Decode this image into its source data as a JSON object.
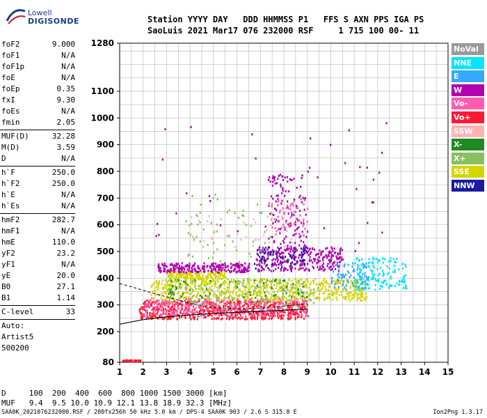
{
  "logo": {
    "line1": "Lowell",
    "line2": "DIGISONDE"
  },
  "header": {
    "line1": "Station YYYY DAY   DDD HHMMSS P1   FFS S AXN PPS IGA PS",
    "line2": "SaoLuis 2021 Mar17 076 232000 RSF     1 715 100 00- 11"
  },
  "params": [
    {
      "label": "foF2",
      "value": "9.000"
    },
    {
      "label": "foF1",
      "value": "N/A"
    },
    {
      "label": "foF1p",
      "value": "N/A"
    },
    {
      "label": "foE",
      "value": "N/A"
    },
    {
      "label": "foEp",
      "value": "0.35"
    },
    {
      "label": "fxI",
      "value": "9.30"
    },
    {
      "label": "foEs",
      "value": "N/A"
    },
    {
      "label": "fmin",
      "value": "2.05"
    },
    {
      "sep": true
    },
    {
      "label": "MUF(D)",
      "value": "32.28"
    },
    {
      "label": "M(D)",
      "value": "3.59"
    },
    {
      "label": "D",
      "value": "N/A"
    },
    {
      "sep": true
    },
    {
      "label": "h`F",
      "value": "250.0"
    },
    {
      "label": "h`F2",
      "value": "250.0"
    },
    {
      "label": "h`E",
      "value": "N/A"
    },
    {
      "label": "h`Es",
      "value": "N/A"
    },
    {
      "sep": true
    },
    {
      "label": "hmF2",
      "value": "282.7"
    },
    {
      "label": "hmF1",
      "value": "N/A"
    },
    {
      "label": "hmE",
      "value": "110.0"
    },
    {
      "label": "yF2",
      "value": "23.2"
    },
    {
      "label": "yF1",
      "value": "N/A"
    },
    {
      "label": "yE",
      "value": "20.0"
    },
    {
      "label": "B0",
      "value": "27.1"
    },
    {
      "label": "B1",
      "value": "1.14"
    },
    {
      "sep": true
    },
    {
      "label": "C-level",
      "value": "33"
    },
    {
      "sep": true
    },
    {
      "text": "Auto:"
    },
    {
      "text": "Artist5"
    },
    {
      "text": "500200"
    }
  ],
  "legend": [
    {
      "label": "NoVal",
      "color": "#9a9a9a"
    },
    {
      "label": "NNE",
      "color": "#00e5ff"
    },
    {
      "label": "E",
      "color": "#33aaff"
    },
    {
      "label": "W",
      "color": "#b000b0"
    },
    {
      "label": "Vo-",
      "color": "#ff5cb0"
    },
    {
      "label": "Vo+",
      "color": "#ff1a33"
    },
    {
      "label": "SSW",
      "color": "#ffb3b3"
    },
    {
      "label": "X-",
      "color": "#1f8a1f"
    },
    {
      "label": "X+",
      "color": "#88c060"
    },
    {
      "label": "SSE",
      "color": "#d4d400"
    },
    {
      "label": "NNW",
      "color": "#1a1aa0"
    }
  ],
  "chart_data": {
    "type": "scatter",
    "title": "",
    "xlabel": "",
    "ylabel": "",
    "xlim": [
      1,
      15
    ],
    "x_ticks": [
      1,
      2,
      3,
      4,
      5,
      6,
      7,
      8,
      9,
      10,
      11,
      12,
      13,
      14,
      15
    ],
    "x_tick_labels": [
      "1",
      "2",
      "3",
      "4",
      "5",
      "6",
      "7",
      "8",
      "9",
      "10",
      "11",
      "12",
      "13",
      "14",
      "15"
    ],
    "y_ticks": [
      80,
      200,
      300,
      400,
      500,
      600,
      700,
      800,
      900,
      1000,
      1100,
      1280
    ],
    "y_tick_labels": [
      "80",
      "200",
      "300",
      "400",
      "500",
      "600",
      "700",
      "800",
      "900",
      "1000",
      "1100",
      "1280"
    ],
    "grid": true,
    "legend_position": "right",
    "clusters": [
      {
        "name": "Vo+",
        "x": [
          1.8,
          9.0
        ],
        "y": [
          250,
          320
        ],
        "n": 700
      },
      {
        "name": "Vo-",
        "x": [
          2.0,
          9.0
        ],
        "y": [
          260,
          330
        ],
        "n": 350
      },
      {
        "name": "SSE",
        "x": [
          2.3,
          11.5
        ],
        "y": [
          320,
          400
        ],
        "n": 700
      },
      {
        "name": "SSE",
        "x": [
          3.0,
          5.5
        ],
        "y": [
          400,
          430
        ],
        "n": 160
      },
      {
        "name": "W",
        "x": [
          2.6,
          6.5
        ],
        "y": [
          425,
          460
        ],
        "n": 240
      },
      {
        "name": "W",
        "x": [
          6.8,
          10.5
        ],
        "y": [
          430,
          520
        ],
        "n": 320
      },
      {
        "name": "X+",
        "x": [
          3.0,
          9.5
        ],
        "y": [
          300,
          400
        ],
        "n": 180
      },
      {
        "name": "NNE",
        "x": [
          11.0,
          13.2
        ],
        "y": [
          360,
          480
        ],
        "n": 150
      },
      {
        "name": "E",
        "x": [
          10.0,
          11.6
        ],
        "y": [
          360,
          460
        ],
        "n": 80
      },
      {
        "name": "NNW",
        "x": [
          6.5,
          9.0
        ],
        "y": [
          440,
          520
        ],
        "n": 60
      },
      {
        "name": "X-",
        "x": [
          3.0,
          9.0
        ],
        "y": [
          330,
          400
        ],
        "n": 60
      },
      {
        "name": "SSW",
        "x": [
          4.0,
          8.5
        ],
        "y": [
          520,
          640
        ],
        "n": 40
      },
      {
        "name": "W",
        "x": [
          7.3,
          9.0
        ],
        "y": [
          520,
          790
        ],
        "n": 120
      },
      {
        "name": "Vo-",
        "x": [
          7.3,
          9.0
        ],
        "y": [
          560,
          700
        ],
        "n": 60
      },
      {
        "name": "X+",
        "x": [
          3.8,
          7.5
        ],
        "y": [
          460,
          720
        ],
        "n": 60
      },
      {
        "name": "Vo+",
        "x": [
          1.1,
          1.9
        ],
        "y": [
          88,
          92
        ],
        "n": 40
      },
      {
        "name": "W",
        "x": [
          2.3,
          12.8
        ],
        "y": [
          500,
          1000
        ],
        "n": 40
      }
    ],
    "trace": {
      "x": [
        1.0,
        2.0,
        3.0,
        4.0,
        5.0,
        6.0,
        7.0,
        8.0,
        9.0
      ],
      "y": [
        228,
        245,
        255,
        262,
        268,
        272,
        276,
        280,
        285
      ]
    },
    "dashed_trace": {
      "x": [
        1.0,
        1.5,
        2.0,
        2.5,
        3.0,
        3.5,
        4.0,
        4.5,
        5.0,
        5.5,
        6.0,
        6.5,
        7.0,
        7.5,
        8.0,
        8.5,
        9.0
      ],
      "y": [
        380,
        368,
        355,
        342,
        330,
        318,
        305,
        296,
        290,
        286,
        285,
        286,
        288,
        292,
        296,
        300,
        305
      ]
    }
  },
  "muf_table": {
    "row1": "D     100  200  400  600  800 1000 1500 3000 [km]",
    "row2": "MUF   9.4  9.5 10.0 10.9 12.1 13.8 18.9 32.3 [MHz]"
  },
  "footer": "SAA0K_2021076232000.RSF / 280fx256h 50 kHz 5.0 km / DPS-4 SAA0K 903 / 2.6 S 315.8 E",
  "version": "Ion2Png 1.3.17"
}
